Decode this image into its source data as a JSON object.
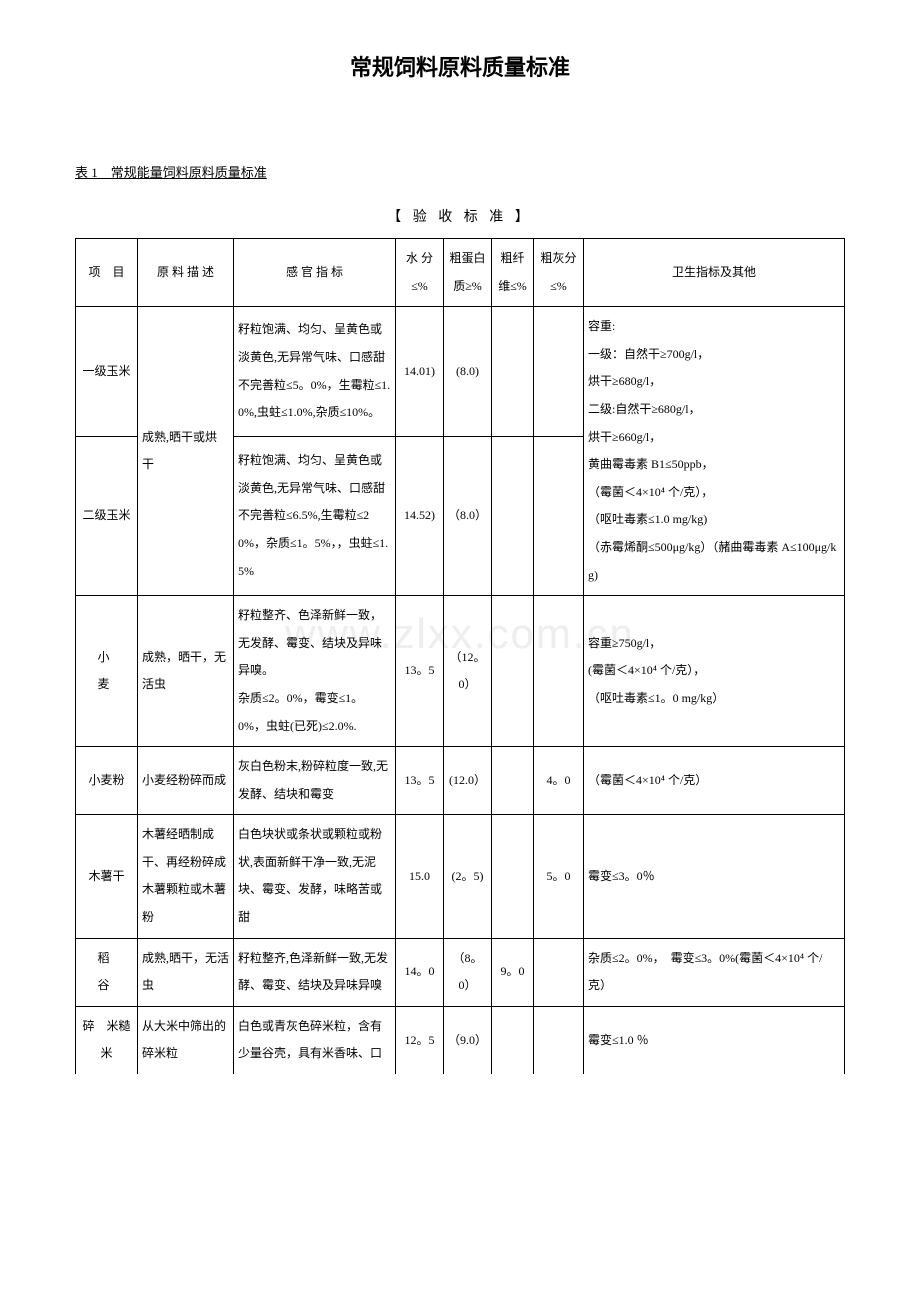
{
  "title": "常规饲料原料质量标准",
  "caption": "表 1　常规能量饲料原料质量标准",
  "subHeader": "【 验 收 标 准 】",
  "watermark": "www.zlxx.com.cn",
  "columns": {
    "item": "项　目",
    "desc": "原 料 描 述",
    "sense": "感 官 指 标",
    "water": "水 分≤%",
    "protein": "粗蛋白质≥%",
    "fiber": "粗纤维≤%",
    "ash": "粗灰分≤%",
    "health": "卫生指标及其他"
  },
  "rows": {
    "corn1": {
      "item": "一级玉米",
      "desc": "成熟,晒干或烘",
      "sense": "籽粒饱满、均匀、呈黄色或淡黄色,无异常气味、口感甜不完善粒≤5。0%，生霉粒≤1.0%,虫蛀≤1.0%,杂质≤10%。",
      "water": "14.01)",
      "protein": "(8.0)",
      "fiber": "",
      "ash": "",
      "health": "容重:\n一级：自然干≥700g/l，\n烘干≥680g/l，\n二级:自然干≥680g/l，\n烘干≥660g/l，"
    },
    "corn2": {
      "item": "二级玉米",
      "desc": "干",
      "sense": "籽粒饱满、均匀、呈黄色或淡黄色,无异常气味、口感甜不完善粒≤6.5%,生霉粒≤20%，杂质≤1。5%，，虫蛀≤1.5%",
      "water": "14.52)",
      "protein": "（8.0）",
      "fiber": "",
      "ash": "",
      "health": "黄曲霉毒素 B1≤50ppb，\n（霉菌＜4×10⁴ 个/克），\n（呕吐毒素≤1.0 mg/kg)\n（赤霉烯酮≤500μg/kg）（赭曲霉毒素 A≤100μg/kg)"
    },
    "wheat": {
      "item": "小　麦",
      "desc": "成熟，晒干，无活虫",
      "sense": "籽粒整齐、色泽新鲜一致，无发酵、霉变、结块及异味异嗅。\n杂质≤2。0%，霉变≤1。0%，虫蛀(已死)≤2.0%.",
      "water": "13。5",
      "protein": "（12。0）",
      "fiber": "",
      "ash": "",
      "health": "容重≥750g/l，\n(霉菌＜4×10⁴ 个/克），\n（呕吐毒素≤1。0 mg/kg）"
    },
    "wheatFlour": {
      "item": "小麦粉",
      "desc": "小麦经粉碎而成",
      "sense": "灰白色粉末,粉碎粒度一致,无发酵、结块和霉变",
      "water": "13。5",
      "protein": "(12.0）",
      "fiber": "",
      "ash": "4。0",
      "health": "（霉菌＜4×10⁴ 个/克）"
    },
    "cassava": {
      "item": "木薯干",
      "desc": "木薯经晒制成干、再经粉碎成木薯颗粒或木薯粉",
      "sense": "白色块状或条状或颗粒或粉状,表面新鲜干净一致,无泥块、霉变、发酵，味略苦或甜",
      "water": "15.0",
      "protein": "(2。5)",
      "fiber": "",
      "ash": "5。0",
      "health": "霉变≤3。0％"
    },
    "paddy": {
      "item": "稻　谷",
      "desc": "成熟,晒干，无活虫",
      "sense": "籽粒整齐,色泽新鲜一致,无发酵、霉变、结块及异味异嗅",
      "water": "14。0",
      "protein": "（8。0）",
      "fiber": "9。0",
      "ash": "",
      "health": "杂质≤2。0%，　霉变≤3。0%(霉菌＜4×10⁴ 个/克）"
    },
    "brokenRice": {
      "item": "碎　米糙　米",
      "desc": "从大米中筛出的碎米粒",
      "sense": "白色或青灰色碎米粒，含有少量谷壳，具有米香味、口",
      "water": "12。5",
      "protein": "（9.0）",
      "fiber": "",
      "ash": "",
      "health": "霉变≤1.0 ％"
    }
  }
}
